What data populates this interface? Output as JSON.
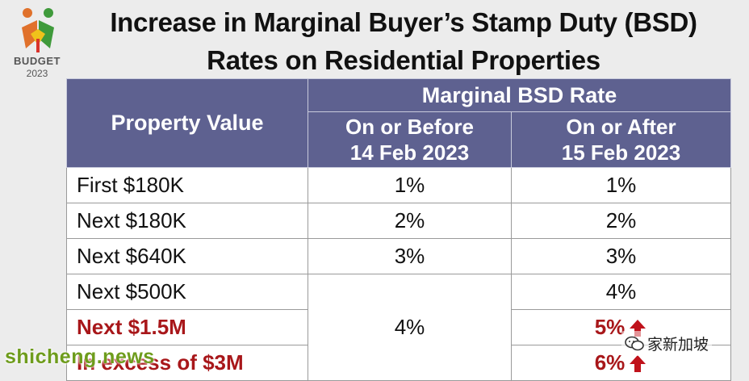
{
  "logo": {
    "line1": "BUDGET",
    "line2": "2023"
  },
  "title": {
    "line1": "Increase in Marginal Buyer’s Stamp Duty (BSD)",
    "line2": "Rates on Residential Properties"
  },
  "table": {
    "header_property": "Property Value",
    "header_group": "Marginal BSD Rate",
    "header_before": [
      "On or Before",
      "14 Feb 2023"
    ],
    "header_after": [
      "On or After",
      "15 Feb 2023"
    ],
    "rows": [
      {
        "property": "First $180K",
        "before": "1%",
        "after": "1%",
        "highlight": false
      },
      {
        "property": "Next $180K",
        "before": "2%",
        "after": "2%",
        "highlight": false
      },
      {
        "property": "Next $640K",
        "before": "3%",
        "after": "3%",
        "highlight": false
      },
      {
        "property": "Next $500K",
        "before": "4%",
        "after": "4%",
        "highlight": false
      },
      {
        "property": "Next $1.5M",
        "before": "4%",
        "after": "5%",
        "highlight": true
      },
      {
        "property": "In excess of $3M",
        "before": "4%",
        "after": "6%",
        "highlight": true
      }
    ],
    "merged_before_value": "4%"
  },
  "colors": {
    "header_bg": "#5e6190",
    "highlight_text": "#a8171a",
    "increase_arrow": "#c0121b",
    "watermark_green": "#6e9c1c"
  },
  "icons": {
    "increase": "arrow-up-icon",
    "wechat": "wechat-icon"
  },
  "watermarks": {
    "left": "shicheng.news",
    "right": "家新加坡"
  }
}
